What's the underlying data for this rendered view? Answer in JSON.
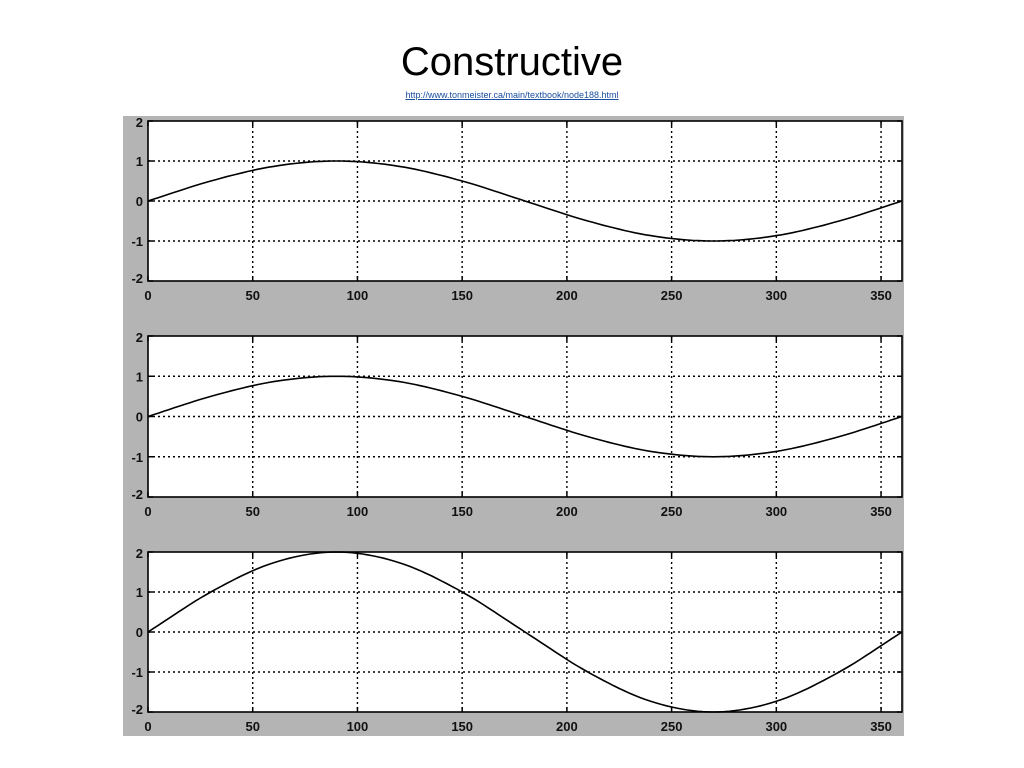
{
  "title": "Constructive",
  "source_url": "http://www.tonmeister.ca/main/textbook/node188.html",
  "colors": {
    "figure_background": "#b4b4b4",
    "plot_background": "#ffffff",
    "line": "#000000"
  },
  "chart_data": [
    {
      "type": "line",
      "title": "",
      "xlabel": "",
      "ylabel": "",
      "xlim": [
        0,
        360
      ],
      "ylim": [
        -2,
        2
      ],
      "xticks": [
        0,
        50,
        100,
        150,
        200,
        250,
        300,
        350
      ],
      "yticks": [
        2,
        1,
        0,
        -1,
        -2
      ],
      "xtick_labels": [
        "0",
        "50",
        "100",
        "150",
        "200",
        "250",
        "300",
        "350"
      ],
      "ytick_labels": [
        "2",
        "1",
        "0",
        "-1",
        "-2"
      ],
      "grid": true,
      "series": [
        {
          "x": [
            0,
            30,
            60,
            90,
            120,
            150,
            180,
            210,
            240,
            270,
            300,
            330,
            360
          ],
          "y": [
            0,
            0.5,
            0.866,
            1,
            0.866,
            0.5,
            0,
            -0.5,
            -0.866,
            -1,
            -0.866,
            -0.5,
            0
          ]
        }
      ]
    },
    {
      "type": "line",
      "title": "",
      "xlabel": "",
      "ylabel": "",
      "xlim": [
        0,
        360
      ],
      "ylim": [
        -2,
        2
      ],
      "xticks": [
        0,
        50,
        100,
        150,
        200,
        250,
        300,
        350
      ],
      "yticks": [
        2,
        1,
        0,
        -1,
        -2
      ],
      "xtick_labels": [
        "0",
        "50",
        "100",
        "150",
        "200",
        "250",
        "300",
        "350"
      ],
      "ytick_labels": [
        "2",
        "1",
        "0",
        "-1",
        "-2"
      ],
      "grid": true,
      "series": [
        {
          "x": [
            0,
            30,
            60,
            90,
            120,
            150,
            180,
            210,
            240,
            270,
            300,
            330,
            360
          ],
          "y": [
            0,
            0.5,
            0.866,
            1,
            0.866,
            0.5,
            0,
            -0.5,
            -0.866,
            -1,
            -0.866,
            -0.5,
            0
          ]
        }
      ]
    },
    {
      "type": "line",
      "title": "",
      "xlabel": "",
      "ylabel": "",
      "xlim": [
        0,
        360
      ],
      "ylim": [
        -2,
        2
      ],
      "xticks": [
        0,
        50,
        100,
        150,
        200,
        250,
        300,
        350
      ],
      "yticks": [
        2,
        1,
        0,
        -1,
        -2
      ],
      "xtick_labels": [
        "0",
        "50",
        "100",
        "150",
        "200",
        "250",
        "300",
        "350"
      ],
      "ytick_labels": [
        "2",
        "1",
        "0",
        "-1",
        "-2"
      ],
      "grid": true,
      "series": [
        {
          "x": [
            0,
            30,
            60,
            90,
            120,
            150,
            180,
            210,
            240,
            270,
            300,
            330,
            360
          ],
          "y": [
            0,
            1,
            1.732,
            2,
            1.732,
            1,
            0,
            -1,
            -1.732,
            -2,
            -1.732,
            -1,
            0
          ]
        }
      ]
    }
  ]
}
